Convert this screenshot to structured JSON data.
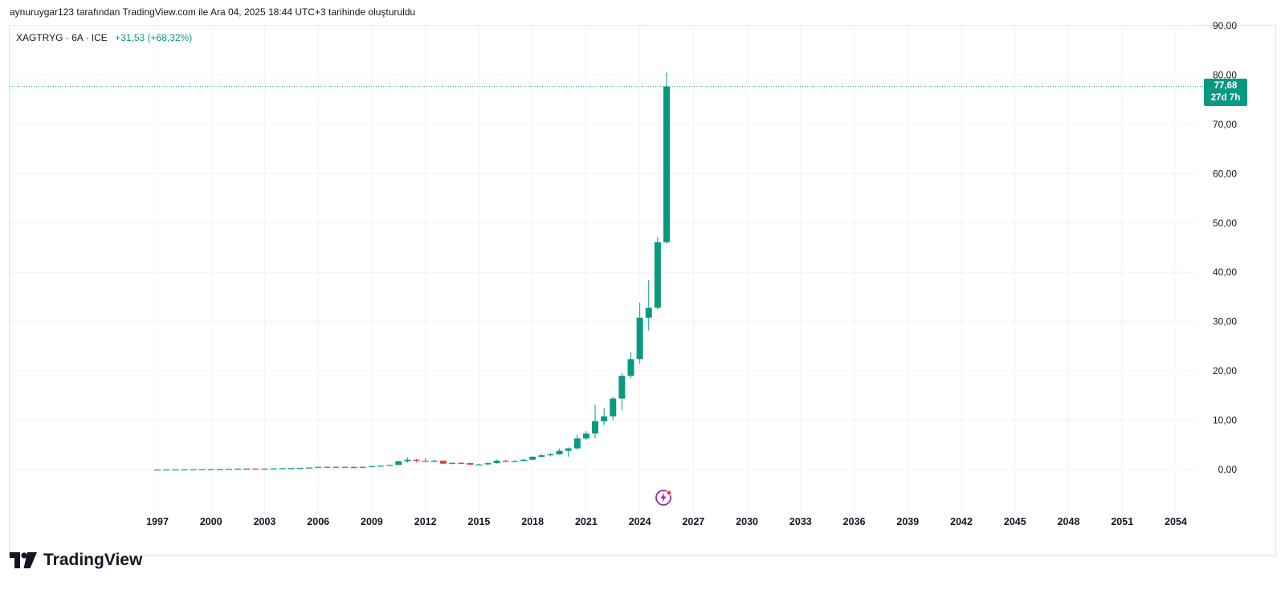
{
  "caption": "aynuruygar123 tarafından TradingView.com ile Ara 04, 2025 18:44 UTC+3 tarihinde oluşturuldu",
  "legend": {
    "symbol": "XAGTRYG · 6A · ICE",
    "change": "+31,53 (+68,32%)"
  },
  "price_badge": {
    "price": "77,68",
    "countdown": "27d 7h"
  },
  "brand": {
    "name": "TradingView",
    "icon": "tradingview-logo-icon"
  },
  "lightning_icon": "lightning-icon",
  "colors": {
    "up": "#089981",
    "down": "#f23645",
    "grid": "#f0f3fa",
    "badge": "#089981"
  },
  "chart_data": {
    "type": "candlestick",
    "title": "",
    "xlabel": "",
    "ylabel": "",
    "interval": "6A",
    "ylim": [
      -9,
      90
    ],
    "xlim": [
      1996.0,
      2055.5
    ],
    "y_ticks": [
      "0,00",
      "10,00",
      "20,00",
      "30,00",
      "40,00",
      "50,00",
      "60,00",
      "70,00",
      "80,00",
      "90,00"
    ],
    "y_tick_values": [
      0,
      10,
      20,
      30,
      40,
      50,
      60,
      70,
      80,
      90
    ],
    "x_ticks": [
      "1997",
      "2000",
      "2003",
      "2006",
      "2009",
      "2012",
      "2015",
      "2018",
      "2021",
      "2024",
      "2027",
      "2030",
      "2033",
      "2036",
      "2039",
      "2042",
      "2045",
      "2048",
      "2051",
      "2054"
    ],
    "x_tick_values": [
      1997,
      2000,
      2003,
      2006,
      2009,
      2012,
      2015,
      2018,
      2021,
      2024,
      2027,
      2030,
      2033,
      2036,
      2039,
      2042,
      2045,
      2048,
      2051,
      2054
    ],
    "last_price": 77.68,
    "candles": [
      {
        "t": 1997.0,
        "o": 0.0,
        "h": 0.01,
        "l": 0.0,
        "c": 0.01
      },
      {
        "t": 1997.5,
        "o": 0.01,
        "h": 0.02,
        "l": 0.01,
        "c": 0.02
      },
      {
        "t": 1998.0,
        "o": 0.02,
        "h": 0.03,
        "l": 0.02,
        "c": 0.03
      },
      {
        "t": 1998.5,
        "o": 0.03,
        "h": 0.05,
        "l": 0.03,
        "c": 0.04
      },
      {
        "t": 1999.0,
        "o": 0.04,
        "h": 0.06,
        "l": 0.04,
        "c": 0.06
      },
      {
        "t": 1999.5,
        "o": 0.06,
        "h": 0.08,
        "l": 0.06,
        "c": 0.08
      },
      {
        "t": 2000.0,
        "o": 0.08,
        "h": 0.11,
        "l": 0.08,
        "c": 0.1
      },
      {
        "t": 2000.5,
        "o": 0.1,
        "h": 0.13,
        "l": 0.1,
        "c": 0.12
      },
      {
        "t": 2001.0,
        "o": 0.12,
        "h": 0.17,
        "l": 0.12,
        "c": 0.16
      },
      {
        "t": 2001.5,
        "o": 0.16,
        "h": 0.2,
        "l": 0.15,
        "c": 0.18
      },
      {
        "t": 2002.0,
        "o": 0.18,
        "h": 0.22,
        "l": 0.17,
        "c": 0.2
      },
      {
        "t": 2002.5,
        "o": 0.2,
        "h": 0.23,
        "l": 0.18,
        "c": 0.19
      },
      {
        "t": 2003.0,
        "o": 0.19,
        "h": 0.22,
        "l": 0.18,
        "c": 0.21
      },
      {
        "t": 2003.5,
        "o": 0.21,
        "h": 0.25,
        "l": 0.2,
        "c": 0.24
      },
      {
        "t": 2004.0,
        "o": 0.24,
        "h": 0.3,
        "l": 0.23,
        "c": 0.28
      },
      {
        "t": 2004.5,
        "o": 0.28,
        "h": 0.32,
        "l": 0.25,
        "c": 0.3
      },
      {
        "t": 2005.0,
        "o": 0.3,
        "h": 0.33,
        "l": 0.28,
        "c": 0.31
      },
      {
        "t": 2005.5,
        "o": 0.31,
        "h": 0.42,
        "l": 0.3,
        "c": 0.4
      },
      {
        "t": 2006.0,
        "o": 0.4,
        "h": 0.6,
        "l": 0.38,
        "c": 0.55
      },
      {
        "t": 2006.5,
        "o": 0.55,
        "h": 0.62,
        "l": 0.45,
        "c": 0.52
      },
      {
        "t": 2007.0,
        "o": 0.52,
        "h": 0.62,
        "l": 0.48,
        "c": 0.55
      },
      {
        "t": 2007.5,
        "o": 0.55,
        "h": 0.62,
        "l": 0.48,
        "c": 0.5
      },
      {
        "t": 2008.0,
        "o": 0.5,
        "h": 0.75,
        "l": 0.42,
        "c": 0.45
      },
      {
        "t": 2008.5,
        "o": 0.45,
        "h": 0.6,
        "l": 0.38,
        "c": 0.55
      },
      {
        "t": 2009.0,
        "o": 0.55,
        "h": 0.75,
        "l": 0.5,
        "c": 0.7
      },
      {
        "t": 2009.5,
        "o": 0.7,
        "h": 0.85,
        "l": 0.65,
        "c": 0.8
      },
      {
        "t": 2010.0,
        "o": 0.8,
        "h": 1.0,
        "l": 0.75,
        "c": 0.95
      },
      {
        "t": 2010.5,
        "o": 0.95,
        "h": 1.75,
        "l": 0.9,
        "c": 1.7
      },
      {
        "t": 2011.0,
        "o": 1.7,
        "h": 2.45,
        "l": 1.4,
        "c": 2.0
      },
      {
        "t": 2011.5,
        "o": 2.0,
        "h": 2.2,
        "l": 1.4,
        "c": 1.8
      },
      {
        "t": 2012.0,
        "o": 1.8,
        "h": 2.3,
        "l": 1.5,
        "c": 1.7
      },
      {
        "t": 2012.5,
        "o": 1.7,
        "h": 2.0,
        "l": 1.5,
        "c": 1.8
      },
      {
        "t": 2013.0,
        "o": 1.8,
        "h": 1.9,
        "l": 1.1,
        "c": 1.2
      },
      {
        "t": 2013.5,
        "o": 1.2,
        "h": 1.5,
        "l": 1.05,
        "c": 1.35
      },
      {
        "t": 2014.0,
        "o": 1.35,
        "h": 1.5,
        "l": 1.2,
        "c": 1.3
      },
      {
        "t": 2014.5,
        "o": 1.3,
        "h": 1.45,
        "l": 0.95,
        "c": 1.0
      },
      {
        "t": 2015.0,
        "o": 1.0,
        "h": 1.2,
        "l": 0.9,
        "c": 1.05
      },
      {
        "t": 2015.5,
        "o": 1.05,
        "h": 1.4,
        "l": 0.95,
        "c": 1.3
      },
      {
        "t": 2016.0,
        "o": 1.3,
        "h": 2.0,
        "l": 1.2,
        "c": 1.8
      },
      {
        "t": 2016.5,
        "o": 1.8,
        "h": 2.0,
        "l": 1.5,
        "c": 1.6
      },
      {
        "t": 2017.0,
        "o": 1.6,
        "h": 1.9,
        "l": 1.5,
        "c": 1.75
      },
      {
        "t": 2017.5,
        "o": 1.75,
        "h": 2.2,
        "l": 1.7,
        "c": 2.0
      },
      {
        "t": 2018.0,
        "o": 2.0,
        "h": 2.7,
        "l": 1.9,
        "c": 2.6
      },
      {
        "t": 2018.5,
        "o": 2.6,
        "h": 3.2,
        "l": 2.4,
        "c": 2.9
      },
      {
        "t": 2019.0,
        "o": 2.9,
        "h": 3.3,
        "l": 2.7,
        "c": 3.1
      },
      {
        "t": 2019.5,
        "o": 3.1,
        "h": 4.2,
        "l": 3.0,
        "c": 3.8
      },
      {
        "t": 2020.0,
        "o": 3.8,
        "h": 4.5,
        "l": 2.6,
        "c": 4.3
      },
      {
        "t": 2020.5,
        "o": 4.3,
        "h": 7.0,
        "l": 4.0,
        "c": 6.3
      },
      {
        "t": 2021.0,
        "o": 6.3,
        "h": 7.8,
        "l": 6.0,
        "c": 7.3
      },
      {
        "t": 2021.5,
        "o": 7.3,
        "h": 13.2,
        "l": 6.3,
        "c": 9.8
      },
      {
        "t": 2022.0,
        "o": 9.8,
        "h": 12.5,
        "l": 9.0,
        "c": 10.8
      },
      {
        "t": 2022.5,
        "o": 10.8,
        "h": 14.8,
        "l": 10.0,
        "c": 14.4
      },
      {
        "t": 2023.0,
        "o": 14.4,
        "h": 19.6,
        "l": 12.0,
        "c": 19.0
      },
      {
        "t": 2023.5,
        "o": 19.0,
        "h": 23.8,
        "l": 18.5,
        "c": 22.4
      },
      {
        "t": 2024.0,
        "o": 22.4,
        "h": 33.8,
        "l": 21.5,
        "c": 30.8
      },
      {
        "t": 2024.5,
        "o": 30.8,
        "h": 38.4,
        "l": 28.2,
        "c": 32.8
      },
      {
        "t": 2025.0,
        "o": 32.8,
        "h": 47.2,
        "l": 32.5,
        "c": 46.1
      },
      {
        "t": 2025.5,
        "o": 46.1,
        "h": 80.6,
        "l": 45.8,
        "c": 77.68
      }
    ]
  }
}
